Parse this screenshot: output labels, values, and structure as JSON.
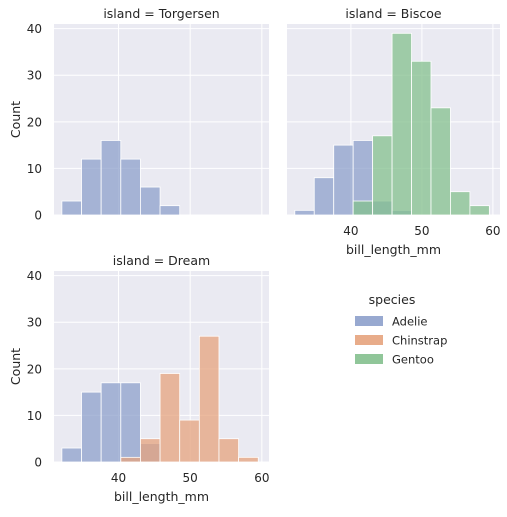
{
  "chart_data": {
    "type": "bar",
    "x_variable": "bill_length_mm",
    "hue_variable": "species",
    "legend": {
      "title": "species",
      "placement": "right",
      "entries": [
        {
          "name": "Adelie",
          "color": "#8da0cb"
        },
        {
          "name": "Chinstrap",
          "color": "#e6a37d"
        },
        {
          "name": "Gentoo",
          "color": "#84c08e"
        }
      ]
    },
    "colors": {
      "Adelie": "#8da0cb",
      "Chinstrap": "#e6a37d",
      "Gentoo": "#84c08e",
      "overlap_adelie_gentoo": "#6b9aa8",
      "overlap_adelie_chinstrap": "#a69bae",
      "panel_background": "#eaeaf2"
    },
    "xlim": [
      31,
      61
    ],
    "ylim": [
      0,
      41
    ],
    "xticks": [
      40,
      50,
      60
    ],
    "yticks": [
      0,
      10,
      20,
      30,
      40
    ],
    "bin_edges": [
      32.1,
      34.84,
      37.58,
      40.32,
      43.06,
      45.8,
      48.54,
      51.28,
      54.02,
      56.76,
      59.5
    ],
    "panels": [
      {
        "title": "island = Torgersen",
        "ylabel": "Count",
        "xlabel": "",
        "show_xticklabels": false,
        "show_yticklabels": true,
        "series": [
          {
            "name": "Adelie",
            "values": [
              3,
              12,
              16,
              12,
              6,
              2,
              0,
              0,
              0,
              0
            ]
          }
        ]
      },
      {
        "title": "island = Biscoe",
        "ylabel": "",
        "xlabel": "bill_length_mm",
        "show_xticklabels": true,
        "show_yticklabels": false,
        "series": [
          {
            "name": "Adelie",
            "values": [
              1,
              8,
              15,
              16,
              3,
              1,
              0,
              0,
              0,
              0
            ]
          },
          {
            "name": "Gentoo",
            "values": [
              0,
              0,
              0,
              3,
              17,
              39,
              33,
              23,
              5,
              2
            ]
          }
        ]
      },
      {
        "title": "island = Dream",
        "ylabel": "Count",
        "xlabel": "bill_length_mm",
        "show_xticklabels": true,
        "show_yticklabels": true,
        "series": [
          {
            "name": "Adelie",
            "values": [
              3,
              15,
              17,
              17,
              4,
              0,
              0,
              0,
              0,
              0
            ]
          },
          {
            "name": "Chinstrap",
            "values": [
              0,
              0,
              0,
              1,
              5,
              19,
              9,
              27,
              5,
              1
            ]
          }
        ]
      }
    ]
  }
}
